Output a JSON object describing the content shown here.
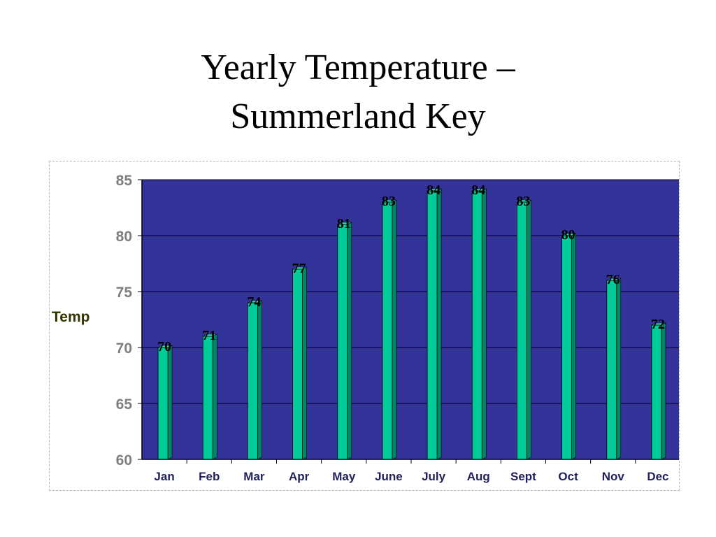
{
  "title": {
    "line1": "Yearly Temperature –",
    "line2": "Summerland Key"
  },
  "colors": {
    "plot_bg": "#333399",
    "bar": "#00cc99",
    "bar_dark": "#008866",
    "grid": "#000000",
    "axis": "#000000"
  },
  "chart_data": {
    "type": "bar",
    "title": "Yearly Temperature – Summerland Key",
    "xlabel": "",
    "ylabel": "Temp",
    "categories": [
      "Jan",
      "Feb",
      "Mar",
      "Apr",
      "May",
      "June",
      "July",
      "Aug",
      "Sept",
      "Oct",
      "Nov",
      "Dec"
    ],
    "values": [
      70,
      71,
      74,
      77,
      81,
      83,
      84,
      84,
      83,
      80,
      76,
      72
    ],
    "ylim": [
      60,
      85
    ],
    "yticks": [
      60,
      65,
      70,
      75,
      80,
      85
    ],
    "grid": true,
    "data_labels": true,
    "legend": "none"
  }
}
